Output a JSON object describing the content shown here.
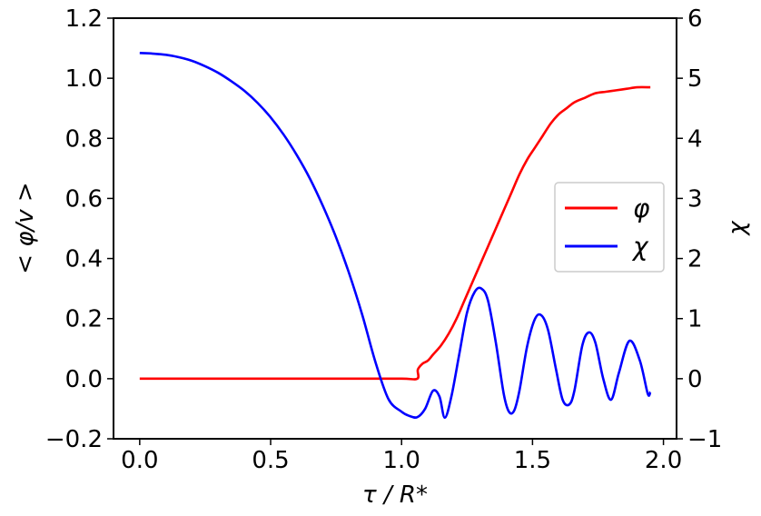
{
  "chart_data": {
    "type": "line",
    "xlabel": "τ / R*",
    "ylabel_left": "< φ/v >",
    "ylabel_right": "χ",
    "xlim": [
      -0.1,
      2.05
    ],
    "ylim_left": [
      -0.2,
      1.2
    ],
    "ylim_right": [
      -1,
      6
    ],
    "x_ticks": [
      0.0,
      0.5,
      1.0,
      1.5,
      2.0
    ],
    "x_tick_labels": [
      "0.0",
      "0.5",
      "1.0",
      "1.5",
      "2.0"
    ],
    "y_left_ticks": [
      -0.2,
      0.0,
      0.2,
      0.4,
      0.6,
      0.8,
      1.0,
      1.2
    ],
    "y_left_tick_labels": [
      "−0.2",
      "0.0",
      "0.2",
      "0.4",
      "0.6",
      "0.8",
      "1.0",
      "1.2"
    ],
    "y_right_ticks": [
      -1,
      0,
      1,
      2,
      3,
      4,
      5,
      6
    ],
    "y_right_tick_labels": [
      "−1",
      "0",
      "1",
      "2",
      "3",
      "4",
      "5",
      "6"
    ],
    "legend_position": "center-right",
    "series": [
      {
        "name": "φ",
        "axis": "left",
        "color": "#ff0000",
        "x": [
          0.0,
          0.2,
          0.4,
          0.6,
          0.8,
          1.0,
          1.06,
          1.062,
          1.08,
          1.1,
          1.12,
          1.15,
          1.18,
          1.21,
          1.24,
          1.27,
          1.3,
          1.33,
          1.36,
          1.39,
          1.42,
          1.45,
          1.48,
          1.51,
          1.54,
          1.57,
          1.6,
          1.63,
          1.66,
          1.7,
          1.74,
          1.78,
          1.82,
          1.86,
          1.9,
          1.95
        ],
        "y": [
          0.0,
          0.0,
          0.0,
          0.0,
          0.0,
          0.0,
          0.0,
          0.03,
          0.05,
          0.06,
          0.08,
          0.11,
          0.15,
          0.2,
          0.26,
          0.32,
          0.38,
          0.44,
          0.5,
          0.56,
          0.62,
          0.68,
          0.73,
          0.77,
          0.81,
          0.85,
          0.88,
          0.9,
          0.92,
          0.935,
          0.95,
          0.955,
          0.96,
          0.965,
          0.97,
          0.97
        ]
      },
      {
        "name": "χ",
        "axis": "right",
        "color": "#0000ff",
        "x": [
          0.0,
          0.05,
          0.1,
          0.15,
          0.2,
          0.25,
          0.3,
          0.35,
          0.4,
          0.45,
          0.5,
          0.55,
          0.6,
          0.65,
          0.7,
          0.75,
          0.8,
          0.85,
          0.9,
          0.95,
          1.0,
          1.03,
          1.06,
          1.09,
          1.12,
          1.145,
          1.165,
          1.19,
          1.22,
          1.25,
          1.28,
          1.305,
          1.33,
          1.36,
          1.39,
          1.41,
          1.43,
          1.45,
          1.48,
          1.51,
          1.535,
          1.56,
          1.59,
          1.615,
          1.64,
          1.66,
          1.69,
          1.715,
          1.74,
          1.77,
          1.8,
          1.83,
          1.87,
          1.91,
          1.94,
          1.95
        ],
        "y": [
          5.42,
          5.41,
          5.39,
          5.35,
          5.29,
          5.2,
          5.09,
          4.95,
          4.79,
          4.59,
          4.35,
          4.06,
          3.72,
          3.33,
          2.87,
          2.35,
          1.75,
          1.06,
          0.28,
          -0.34,
          -0.55,
          -0.62,
          -0.64,
          -0.5,
          -0.2,
          -0.3,
          -0.65,
          -0.3,
          0.4,
          1.1,
          1.45,
          1.5,
          1.3,
          0.6,
          -0.25,
          -0.55,
          -0.53,
          -0.2,
          0.55,
          1.0,
          1.05,
          0.8,
          0.15,
          -0.35,
          -0.43,
          -0.2,
          0.55,
          0.77,
          0.6,
          0.0,
          -0.35,
          0.1,
          0.63,
          0.3,
          -0.25,
          -0.22
        ]
      }
    ]
  }
}
